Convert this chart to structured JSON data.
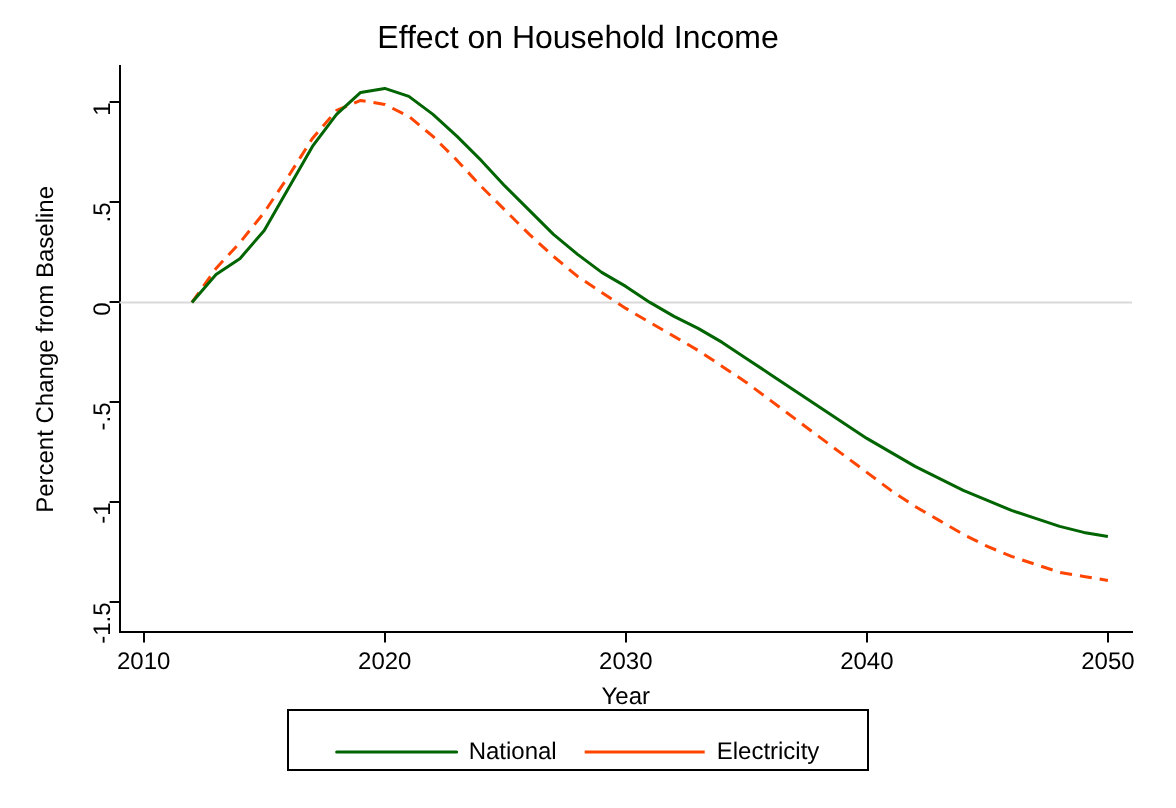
{
  "chart_data": {
    "type": "line",
    "title": "Effect on Household Income",
    "xlabel": "Year",
    "ylabel": "Percent Change from Baseline",
    "x": [
      2012,
      2013,
      2014,
      2015,
      2016,
      2017,
      2018,
      2019,
      2020,
      2021,
      2022,
      2023,
      2024,
      2025,
      2026,
      2027,
      2028,
      2029,
      2030,
      2031,
      2032,
      2033,
      2034,
      2035,
      2036,
      2037,
      2038,
      2039,
      2040,
      2041,
      2042,
      2043,
      2044,
      2045,
      2046,
      2047,
      2048,
      2049,
      2050
    ],
    "series": [
      {
        "name": "National",
        "color": "#006400",
        "line_style": "solid",
        "values": [
          0,
          0.14,
          0.22,
          0.36,
          0.57,
          0.78,
          0.94,
          1.05,
          1.07,
          1.03,
          0.94,
          0.83,
          0.71,
          0.58,
          0.46,
          0.34,
          0.24,
          0.15,
          0.08,
          0.0,
          -0.07,
          -0.13,
          -0.2,
          -0.28,
          -0.36,
          -0.44,
          -0.52,
          -0.6,
          -0.68,
          -0.75,
          -0.82,
          -0.88,
          -0.94,
          -0.99,
          -1.04,
          -1.08,
          -1.12,
          -1.15,
          -1.17
        ]
      },
      {
        "name": "Electricity",
        "color": "#ff4500",
        "line_style": "dashed",
        "values": [
          0,
          0.17,
          0.3,
          0.45,
          0.63,
          0.82,
          0.96,
          1.01,
          0.99,
          0.93,
          0.83,
          0.71,
          0.58,
          0.46,
          0.34,
          0.23,
          0.13,
          0.05,
          -0.03,
          -0.1,
          -0.17,
          -0.24,
          -0.32,
          -0.4,
          -0.49,
          -0.58,
          -0.67,
          -0.76,
          -0.85,
          -0.94,
          -1.02,
          -1.09,
          -1.16,
          -1.22,
          -1.27,
          -1.31,
          -1.35,
          -1.37,
          -1.39
        ]
      }
    ],
    "xlim": [
      2009,
      2051
    ],
    "xticks": [
      2010,
      2020,
      2030,
      2040,
      2050
    ],
    "ylim": [
      -1.65,
      1.18
    ],
    "yticks": [
      {
        "value": -1.5,
        "label": "-1.5"
      },
      -1,
      {
        "value": -0.5,
        "label": "-.5"
      },
      0,
      {
        "value": 0.5,
        "label": ".5"
      },
      1
    ],
    "ref_lines": [
      {
        "axis": "y",
        "value": 0,
        "color": "#d9d9d9"
      }
    ],
    "grid": false,
    "legend": "bottom",
    "marker": "none"
  }
}
